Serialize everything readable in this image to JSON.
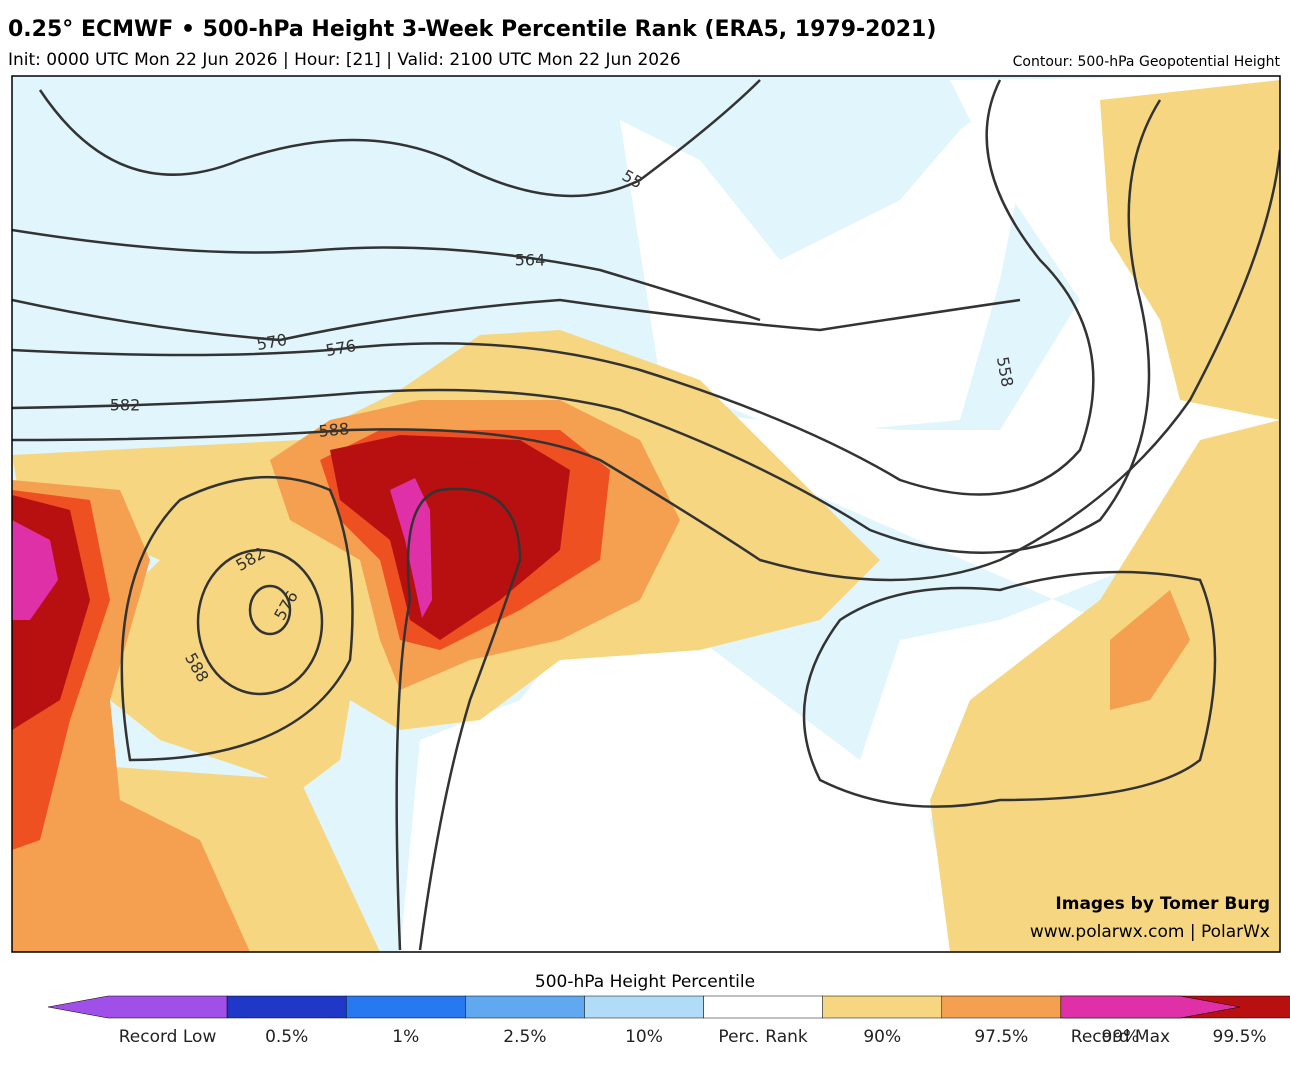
{
  "header": {
    "title": "0.25° ECMWF • 500-hPa Height 3-Week Percentile Rank (ERA5, 1979-2021)",
    "subtitle": "Init: 0000 UTC Mon 22 Jun 2026 | Hour: [21] | Valid: 2100 UTC Mon 22 Jun 2026",
    "contour_note": "Contour: 500-hPa Geopotential Height"
  },
  "map": {
    "contour_labels": [
      "55",
      "564",
      "570",
      "576",
      "582",
      "588",
      "582",
      "576",
      "588",
      "558"
    ],
    "credit": [
      "Images by Tomer Burg",
      "www.polarwx.com | PolarWx"
    ]
  },
  "colorbar": {
    "title": "500-hPa Height Percentile",
    "colors": [
      "#a050e8",
      "#2038c8",
      "#2878f0",
      "#60a8f0",
      "#b0dcf8",
      "#ffffff",
      "#f6d680",
      "#f4a050",
      "#ee5022",
      "#b81010",
      "#e030a8"
    ],
    "labels": [
      "Record Low",
      "0.5%",
      "1%",
      "2.5%",
      "10%",
      "Perc. Rank",
      "90%",
      "97.5%",
      "99%",
      "99.5%",
      "Record Max"
    ]
  }
}
